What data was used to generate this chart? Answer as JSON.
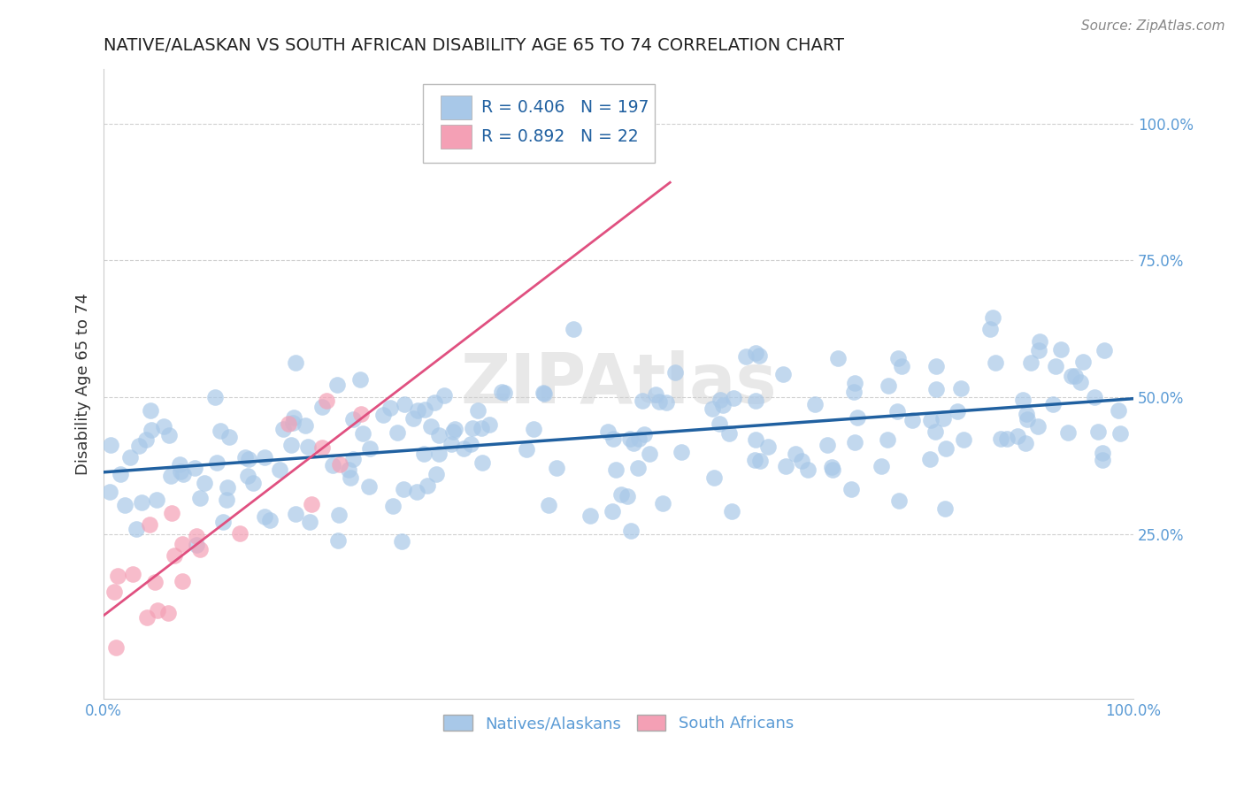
{
  "title": "NATIVE/ALASKAN VS SOUTH AFRICAN DISABILITY AGE 65 TO 74 CORRELATION CHART",
  "source": "Source: ZipAtlas.com",
  "ylabel": "Disability Age 65 to 74",
  "xlim": [
    0.0,
    1.0
  ],
  "ylim": [
    -0.05,
    1.1
  ],
  "blue_R": 0.406,
  "blue_N": 197,
  "pink_R": 0.892,
  "pink_N": 22,
  "blue_color": "#a8c8e8",
  "pink_color": "#f4a0b5",
  "blue_line_color": "#2060a0",
  "pink_line_color": "#e05080",
  "legend_label_blue": "Natives/Alaskans",
  "legend_label_pink": "South Africans",
  "watermark": "ZIPAtlas",
  "background_color": "#ffffff",
  "grid_color": "#d0d0d0",
  "title_color": "#222222",
  "axis_color": "#5b9bd5",
  "tick_fontsize": 12,
  "ylabel_fontsize": 13,
  "title_fontsize": 14
}
